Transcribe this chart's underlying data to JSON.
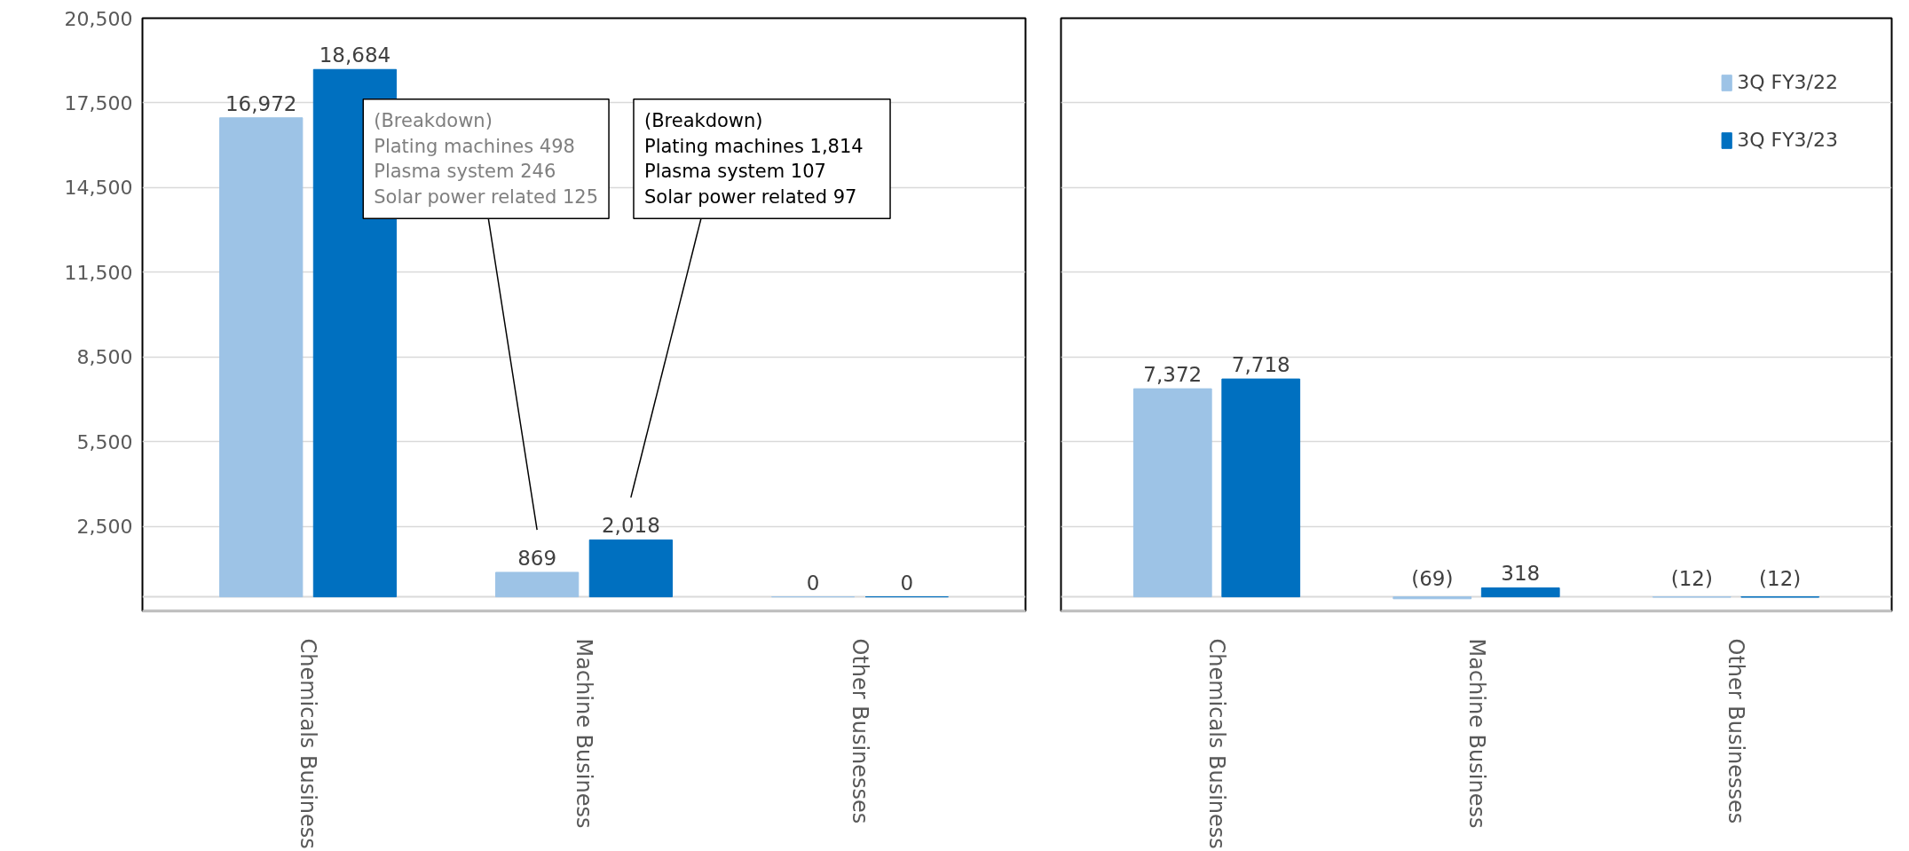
{
  "chart_data": [
    {
      "type": "bar",
      "categories": [
        "Chemicals Business",
        "Machine Business",
        "Other Businesses"
      ],
      "series": [
        {
          "color": "#9dc3e6",
          "values": [
            16972,
            869,
            0
          ],
          "value_labels": [
            "16,972",
            "869",
            "0"
          ]
        },
        {
          "color": "#0070c0",
          "values": [
            18684,
            2018,
            0
          ],
          "value_labels": [
            "18,684",
            "2,018",
            "0"
          ]
        }
      ],
      "ylim": [
        -500,
        20500
      ],
      "yticks": [
        {
          "value": 2500,
          "label": "2,500"
        },
        {
          "value": 5500,
          "label": "5,500"
        },
        {
          "value": 8500,
          "label": "8,500"
        },
        {
          "value": 11500,
          "label": "11,500"
        },
        {
          "value": 14500,
          "label": "14,500"
        },
        {
          "value": 17500,
          "label": "17,500"
        },
        {
          "value": 20500,
          "label": "20,500"
        }
      ],
      "grid": "y",
      "legend": false,
      "annotations": [
        "(Breakdown)\nPlating machines    498\nPlasma system       246\nSolar power related 125",
        "(Breakdown)\nPlating machines 1,814\nPlasma system          107\nSolar power related  97"
      ]
    },
    {
      "type": "bar",
      "categories": [
        "Chemicals Business",
        "Machine Business",
        "Other Businesses"
      ],
      "series": [
        {
          "name": "3Q FY3/22",
          "color": "#9dc3e6",
          "values": [
            7372,
            -69,
            -12
          ],
          "value_labels": [
            "7,372",
            "(69)",
            "(12)"
          ]
        },
        {
          "name": "3Q FY3/23",
          "color": "#0070c0",
          "values": [
            7718,
            318,
            -12
          ],
          "value_labels": [
            "7,718",
            "318",
            "(12)"
          ]
        }
      ],
      "ylim": [
        -500,
        20500
      ],
      "yticks": [
        {
          "value": 2500,
          "label": null
        },
        {
          "value": 5500,
          "label": null
        },
        {
          "value": 8500,
          "label": null
        },
        {
          "value": 11500,
          "label": null
        },
        {
          "value": 14500,
          "label": null
        },
        {
          "value": 17500,
          "label": null
        },
        {
          "value": 20500,
          "label": null
        }
      ],
      "grid": "y",
      "tick_labels": "x",
      "legend": "top right"
    }
  ]
}
